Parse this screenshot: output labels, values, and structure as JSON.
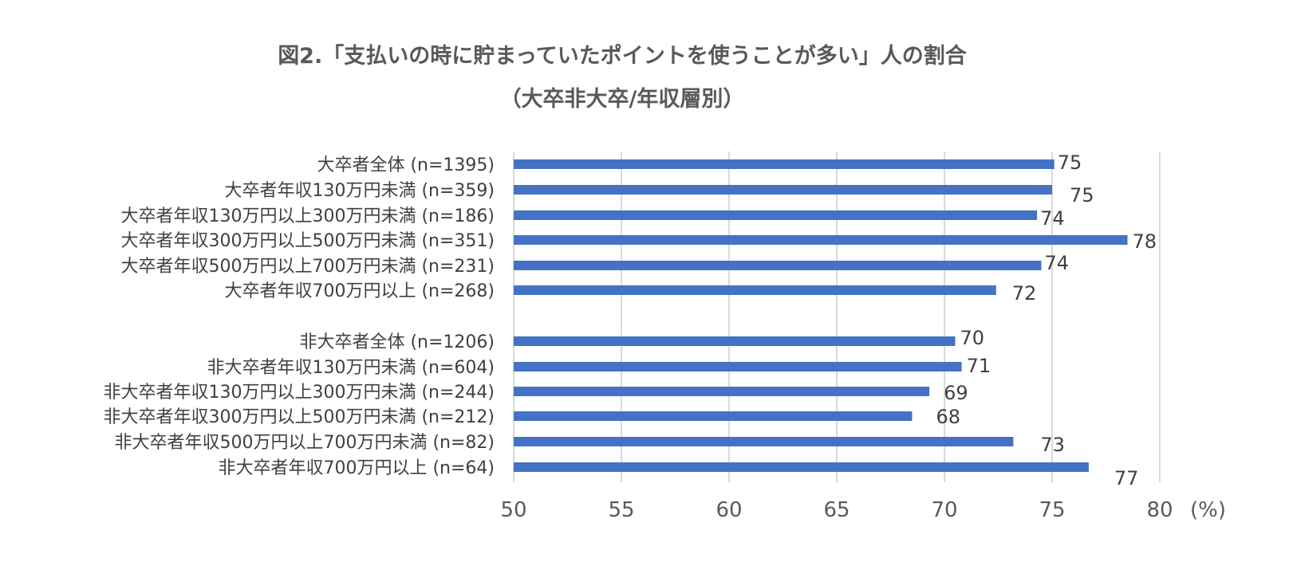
{
  "chart_data": {
    "type": "bar",
    "orientation": "horizontal",
    "title": "図2.「支払いの時に貯まっていたポイントを使うことが多い」人の割合",
    "subtitle": "（大卒非大卒/年収層別）",
    "xlabel": "",
    "ylabel": "",
    "unit_label": "(%)",
    "xlim": [
      50,
      80
    ],
    "ticks": [
      "50",
      "55",
      "60",
      "65",
      "70",
      "75",
      "80"
    ],
    "grid": true,
    "legend": "none",
    "bar_color": "#4472C4",
    "categories": [
      "大卒者全体 (n=1395)",
      "大卒者年収130万円未満 (n=359)",
      "大卒者年収130万円以上300万円未満 (n=186)",
      "大卒者年収300万円以上500万円未満 (n=351)",
      "大卒者年収500万円以上700万円未満 (n=231)",
      "大卒者年収700万円以上 (n=268)",
      "非大卒者全体 (n=1206)",
      "非大卒者年収130万円未満 (n=604)",
      "非大卒者年収130万円以上300万円未満 (n=244)",
      "非大卒者年収300万円以上500万円未満 (n=212)",
      "非大卒者年収500万円以上700万円未満 (n=82)",
      "非大卒者年収700万円以上 (n=64)"
    ],
    "values": [
      75.1,
      75.0,
      74.3,
      78.5,
      74.5,
      72.4,
      70.5,
      70.8,
      69.3,
      68.5,
      73.2,
      76.7
    ],
    "data_labels": [
      "75",
      "75",
      "74",
      "78",
      "74",
      "72",
      "70",
      "71",
      "69",
      "68",
      "73",
      "77"
    ]
  }
}
